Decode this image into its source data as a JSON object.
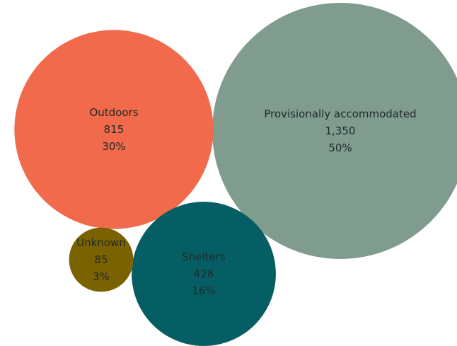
{
  "chart_data": {
    "type": "bubble",
    "title": "",
    "categories": [
      "Provisionally accommodated",
      "Outdoors",
      "Shelters",
      "Unknown"
    ],
    "values": [
      1350,
      815,
      428,
      85
    ],
    "percent_labels": [
      "50%",
      "30%",
      "16%",
      "3%"
    ],
    "value_labels": [
      "1,350",
      "815",
      "428",
      "85"
    ],
    "colors": {
      "Provisionally accommodated": "#7f9c8f",
      "Outdoors": "#f06a4b",
      "Shelters": "#065e65",
      "Unknown": "#7b6200"
    },
    "legend": "none",
    "grid": false
  }
}
